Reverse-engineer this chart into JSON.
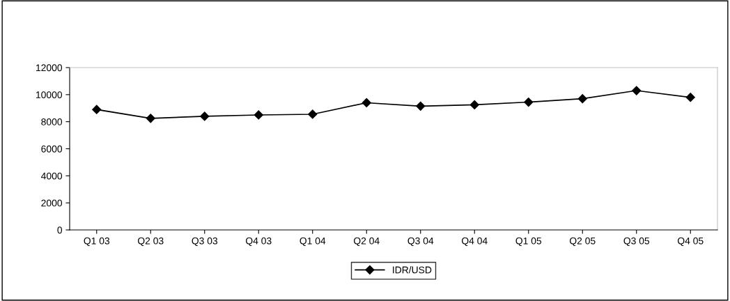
{
  "chart_data": {
    "type": "line",
    "categories": [
      "Q1 03",
      "Q2 03",
      "Q3 03",
      "Q4 03",
      "Q1 04",
      "Q2 04",
      "Q3 04",
      "Q4 04",
      "Q1 05",
      "Q2 05",
      "Q3 05",
      "Q4 05"
    ],
    "series": [
      {
        "name": "IDR/USD",
        "color": "#000000",
        "values": [
          8900,
          8250,
          8400,
          8500,
          8550,
          9400,
          9150,
          9250,
          9450,
          9700,
          10300,
          9800
        ]
      }
    ],
    "ylim": [
      0,
      12000
    ],
    "yticks": [
      0,
      2000,
      4000,
      6000,
      8000,
      10000,
      12000
    ],
    "grid": false,
    "legend": "bottom",
    "marker": "diamond",
    "line_style": "solid"
  }
}
